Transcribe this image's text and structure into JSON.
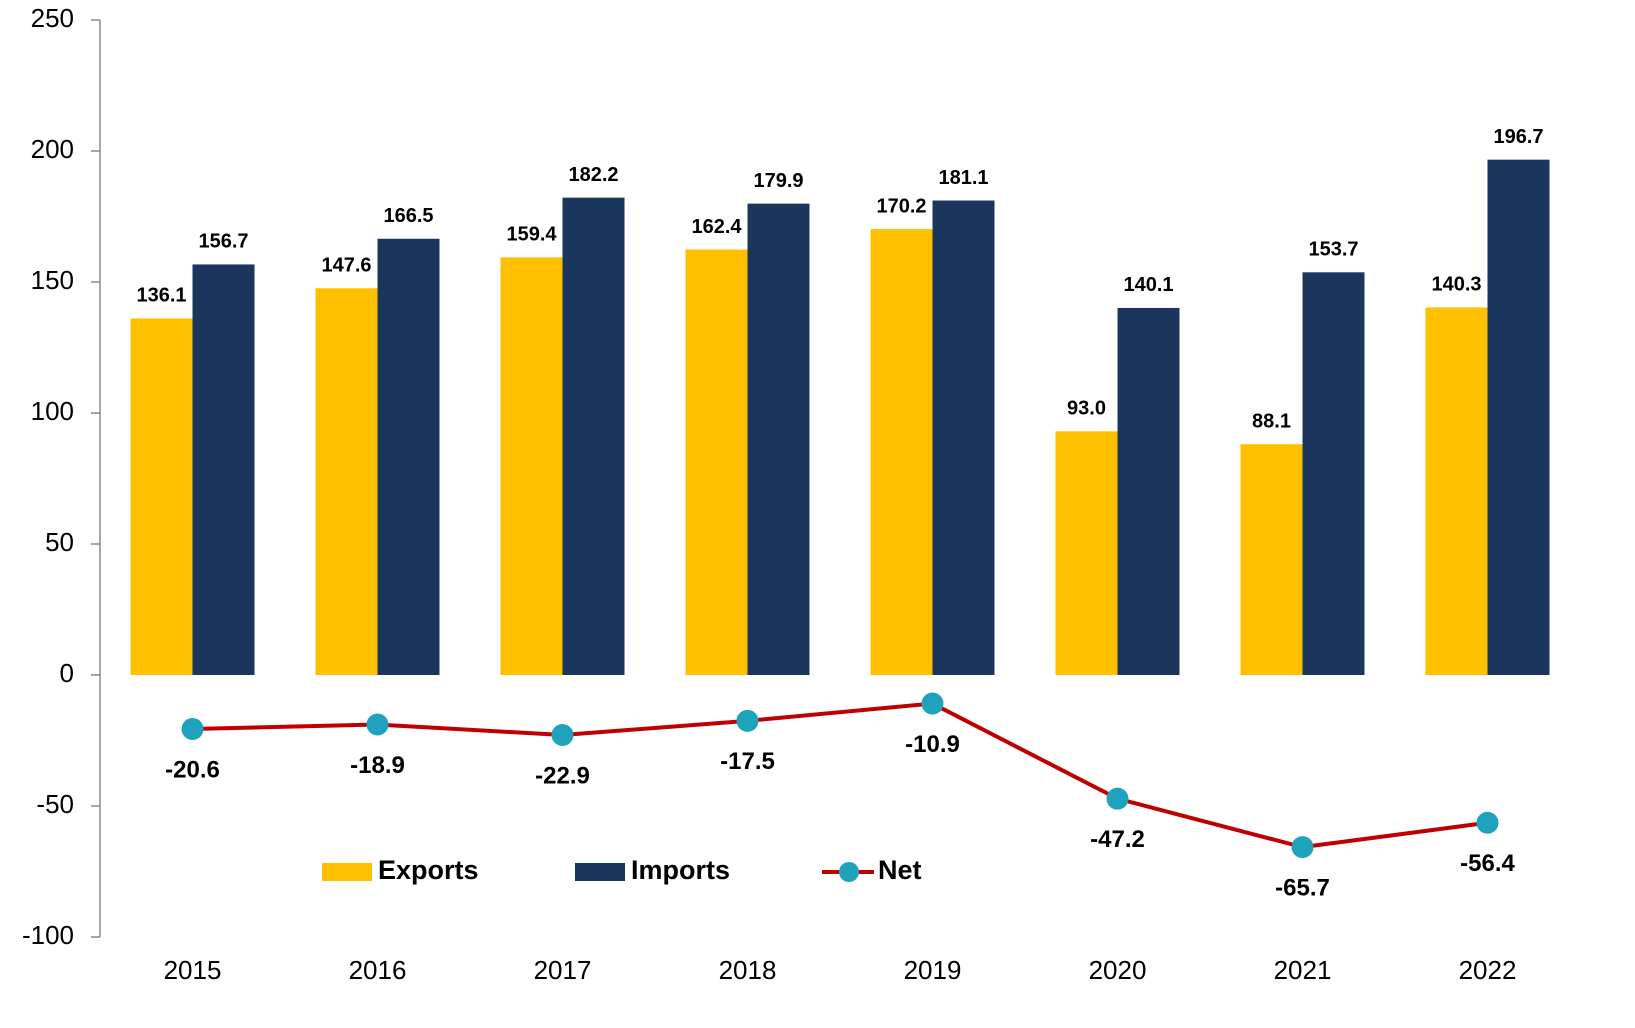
{
  "chart_data": {
    "type": "bar_line",
    "categories": [
      "2015",
      "2016",
      "2017",
      "2018",
      "2019",
      "2020",
      "2021",
      "2022"
    ],
    "series": [
      {
        "name": "Exports",
        "type": "bar",
        "color": "#FFC000",
        "values": [
          136.1,
          147.6,
          159.4,
          162.4,
          170.2,
          93.0,
          88.1,
          140.3
        ],
        "value_labels": [
          "136.1",
          "147.6",
          "159.4",
          "162.4",
          "170.2",
          "93.0",
          "88.1",
          "140.3"
        ]
      },
      {
        "name": "Imports",
        "type": "bar",
        "color": "#1B365D",
        "values": [
          156.7,
          166.5,
          182.2,
          179.9,
          181.1,
          140.1,
          153.7,
          196.7
        ],
        "value_labels": [
          "156.7",
          "166.5",
          "182.2",
          "179.9",
          "181.1",
          "140.1",
          "153.7",
          "196.7"
        ]
      },
      {
        "name": "Net",
        "type": "line",
        "color": "#C00000",
        "marker_color": "#1FA3BD",
        "values": [
          -20.6,
          -18.9,
          -22.9,
          -17.5,
          -10.9,
          -47.2,
          -65.7,
          -56.4
        ],
        "value_labels": [
          "-20.6",
          "-18.9",
          "-22.9",
          "-17.5",
          "-10.9",
          "-47.2",
          "-65.7",
          "-56.4"
        ]
      }
    ],
    "ylim": [
      -100,
      250
    ],
    "yticks": [
      -100,
      -50,
      0,
      50,
      100,
      150,
      200,
      250
    ],
    "grid": false,
    "legend": "bottom"
  }
}
